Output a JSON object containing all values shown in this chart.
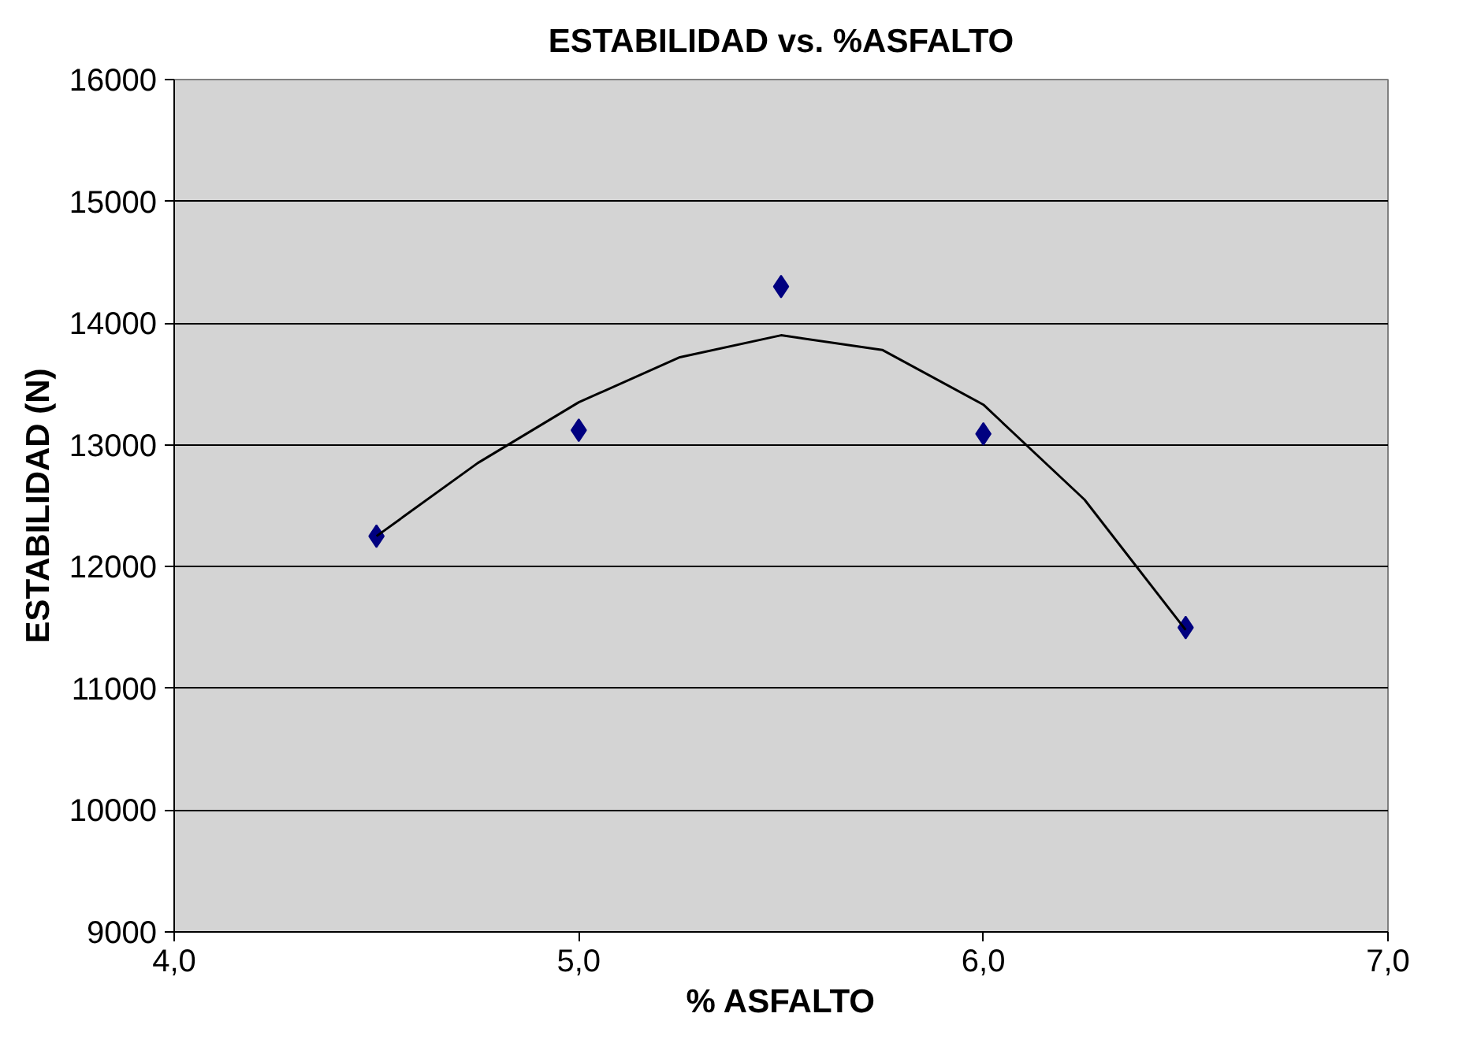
{
  "chart_data": {
    "type": "scatter",
    "title": "ESTABILIDAD vs. %ASFALTO",
    "xlabel": "% ASFALTO",
    "ylabel": "ESTABILIDAD (N)",
    "xlim": [
      4,
      7
    ],
    "ylim": [
      9000,
      16000
    ],
    "xticks": [
      {
        "value": 4,
        "label": "4,0"
      },
      {
        "value": 5,
        "label": "5,0"
      },
      {
        "value": 6,
        "label": "6,0"
      },
      {
        "value": 7,
        "label": "7,0"
      }
    ],
    "yticks": [
      9000,
      10000,
      11000,
      12000,
      13000,
      14000,
      15000,
      16000
    ],
    "grid": "y",
    "series": [
      {
        "color": "#000080",
        "marker": "diamond",
        "x": [
          4.5,
          5.0,
          5.5,
          6.0,
          6.5
        ],
        "values": [
          12250,
          13120,
          14300,
          13090,
          11500
        ]
      },
      {
        "type": "line",
        "color": "#000000",
        "marker": "none",
        "line_style": "solid",
        "x": [
          4.5,
          4.75,
          5.0,
          5.25,
          5.5,
          5.75,
          6.0,
          6.25,
          6.5
        ],
        "values": [
          12250,
          12850,
          13350,
          13720,
          13900,
          13780,
          13330,
          12550,
          11480
        ]
      }
    ]
  }
}
